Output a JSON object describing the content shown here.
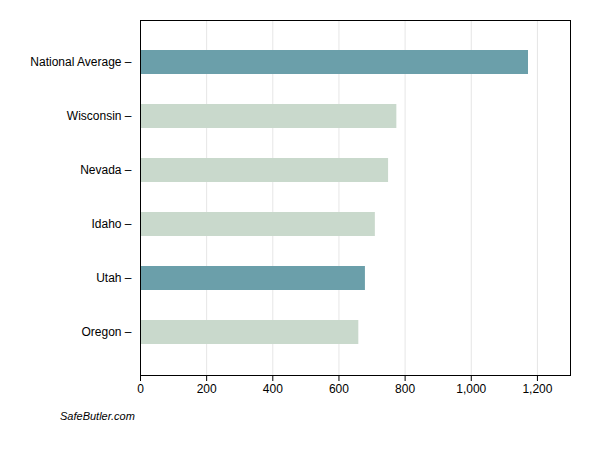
{
  "chart_data": {
    "type": "bar",
    "orientation": "horizontal",
    "categories": [
      "National Average –",
      "Wisconsin –",
      "Nevada –",
      "Idaho –",
      "Utah –",
      "Oregon –"
    ],
    "values": [
      1173,
      775,
      750,
      710,
      680,
      660
    ],
    "colors": [
      "#6b9faa",
      "#c9d9cc",
      "#c9d9cc",
      "#c9d9cc",
      "#6b9faa",
      "#c9d9cc"
    ],
    "xlim": [
      0,
      1300
    ],
    "xticks": [
      0,
      200,
      400,
      600,
      800,
      1000,
      1200
    ],
    "grid": true,
    "caption": "SafeButler.com"
  }
}
